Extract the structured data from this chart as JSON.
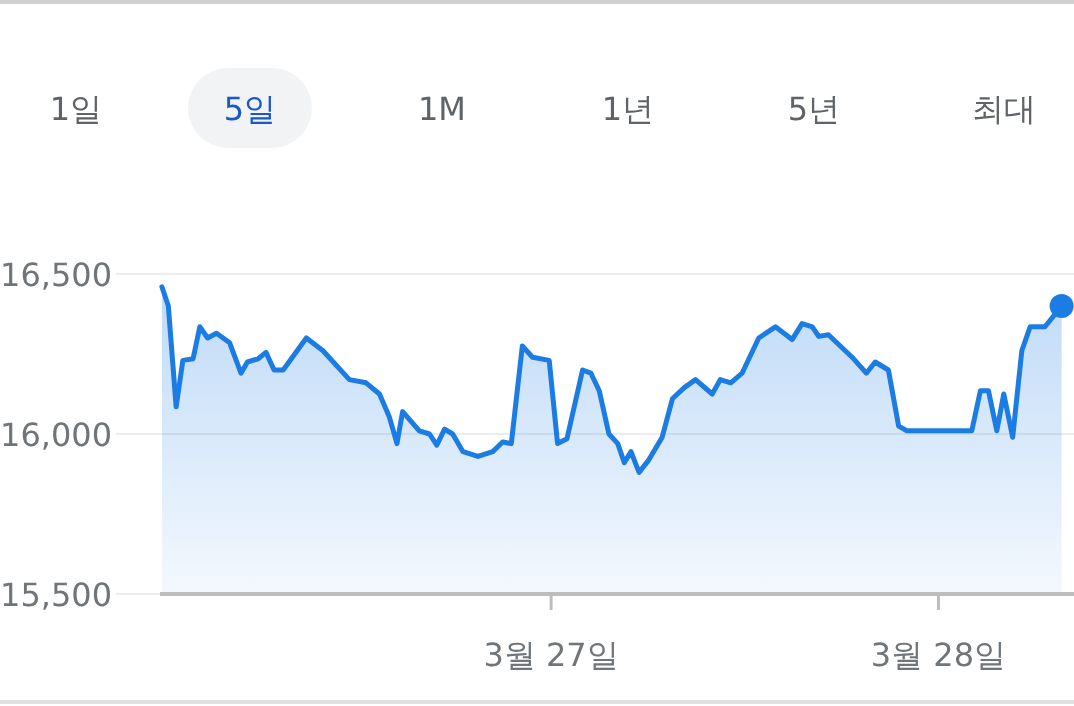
{
  "chart_data": {
    "type": "area",
    "color": "#1b7ce3",
    "annotations": [
      "1일",
      "5일",
      "1M",
      "1년",
      "5년",
      "최대"
    ],
    "x": [
      "--03-25T23:53",
      "--03-26T00:17",
      "--03-26T00:46",
      "--03-26T01:11",
      "--03-26T01:49",
      "--03-26T02:14",
      "--03-26T02:43",
      "--03-26T03:16",
      "--03-26T04:05",
      "--03-26T04:47",
      "--03-26T05:11",
      "--03-26T05:51",
      "--03-26T06:20",
      "--03-26T06:50",
      "--03-26T07:24",
      "--03-26T08:50",
      "--03-26T09:52",
      "--03-26T11:30",
      "--03-26T12:32",
      "--03-26T13:22",
      "--03-26T13:58",
      "--03-26T14:27",
      "--03-26T14:48",
      "--03-26T15:50",
      "--03-26T16:28",
      "--03-26T16:55",
      "--03-26T17:24",
      "--03-26T17:54",
      "--03-26T18:32",
      "--03-26T19:28",
      "--03-26T20:23",
      "--03-26T21:00",
      "--03-26T21:32",
      "--03-26T22:13",
      "--03-26T22:51",
      "--03-26T23:53",
      "--03-27T00:24",
      "--03-27T00:59",
      "--03-27T01:57",
      "--03-27T02:28",
      "--03-27T02:59",
      "--03-27T03:35",
      "--03-27T04:08",
      "--03-27T04:32",
      "--03-27T04:57",
      "--03-27T05:27",
      "--03-27T06:04",
      "--03-27T06:53",
      "--03-27T07:31",
      "--03-27T08:15",
      "--03-27T08:57",
      "--03-27T09:59",
      "--03-27T10:29",
      "--03-27T11:08",
      "--03-27T11:50",
      "--03-27T12:52",
      "--03-27T13:54",
      "--03-27T14:56",
      "--03-27T15:33",
      "--03-27T16:11",
      "--03-27T16:35",
      "--03-27T17:11",
      "--03-27T18:39",
      "--03-27T19:32",
      "--03-27T20:05",
      "--03-27T20:54",
      "--03-27T21:32",
      "--03-27T22:03",
      "--03-28T02:04",
      "--03-28T02:36",
      "--03-28T03:06",
      "--03-28T03:37",
      "--03-28T04:03",
      "--03-28T04:36",
      "--03-28T05:10",
      "--03-28T05:41",
      "--03-28T06:36",
      "--03-28T07:38"
    ],
    "values": [
      16460,
      16400,
      16085,
      16230,
      16235,
      16335,
      16300,
      16315,
      16285,
      16190,
      16225,
      16235,
      16255,
      16200,
      16200,
      16300,
      16260,
      16170,
      16160,
      16125,
      16055,
      15970,
      16070,
      16010,
      16000,
      15965,
      16015,
      16000,
      15945,
      15930,
      15945,
      15975,
      15970,
      16275,
      16240,
      16230,
      15970,
      15985,
      16200,
      16190,
      16135,
      16000,
      15970,
      15910,
      15945,
      15880,
      15920,
      15990,
      16110,
      16145,
      16170,
      16125,
      16170,
      16160,
      16190,
      16300,
      16335,
      16295,
      16345,
      16335,
      16305,
      16310,
      16240,
      16190,
      16225,
      16200,
      16025,
      16010,
      16010,
      16135,
      16135,
      16010,
      16125,
      15990,
      16260,
      16335,
      16335,
      16400
    ],
    "xlim": [
      "--03-25T23:46",
      "--03-28T08:24"
    ],
    "xticks": [
      {
        "value": "--03-27",
        "label": "3월 27일"
      },
      {
        "value": "--03-28",
        "label": "3월 28일"
      }
    ],
    "ylim": [
      15500,
      16500
    ],
    "yticks": [
      {
        "value": 15500,
        "label": "15,500"
      },
      {
        "value": 16000,
        "label": "16,000"
      },
      {
        "value": 16500,
        "label": "16,500"
      }
    ],
    "grid": "y",
    "marker": "none"
  }
}
